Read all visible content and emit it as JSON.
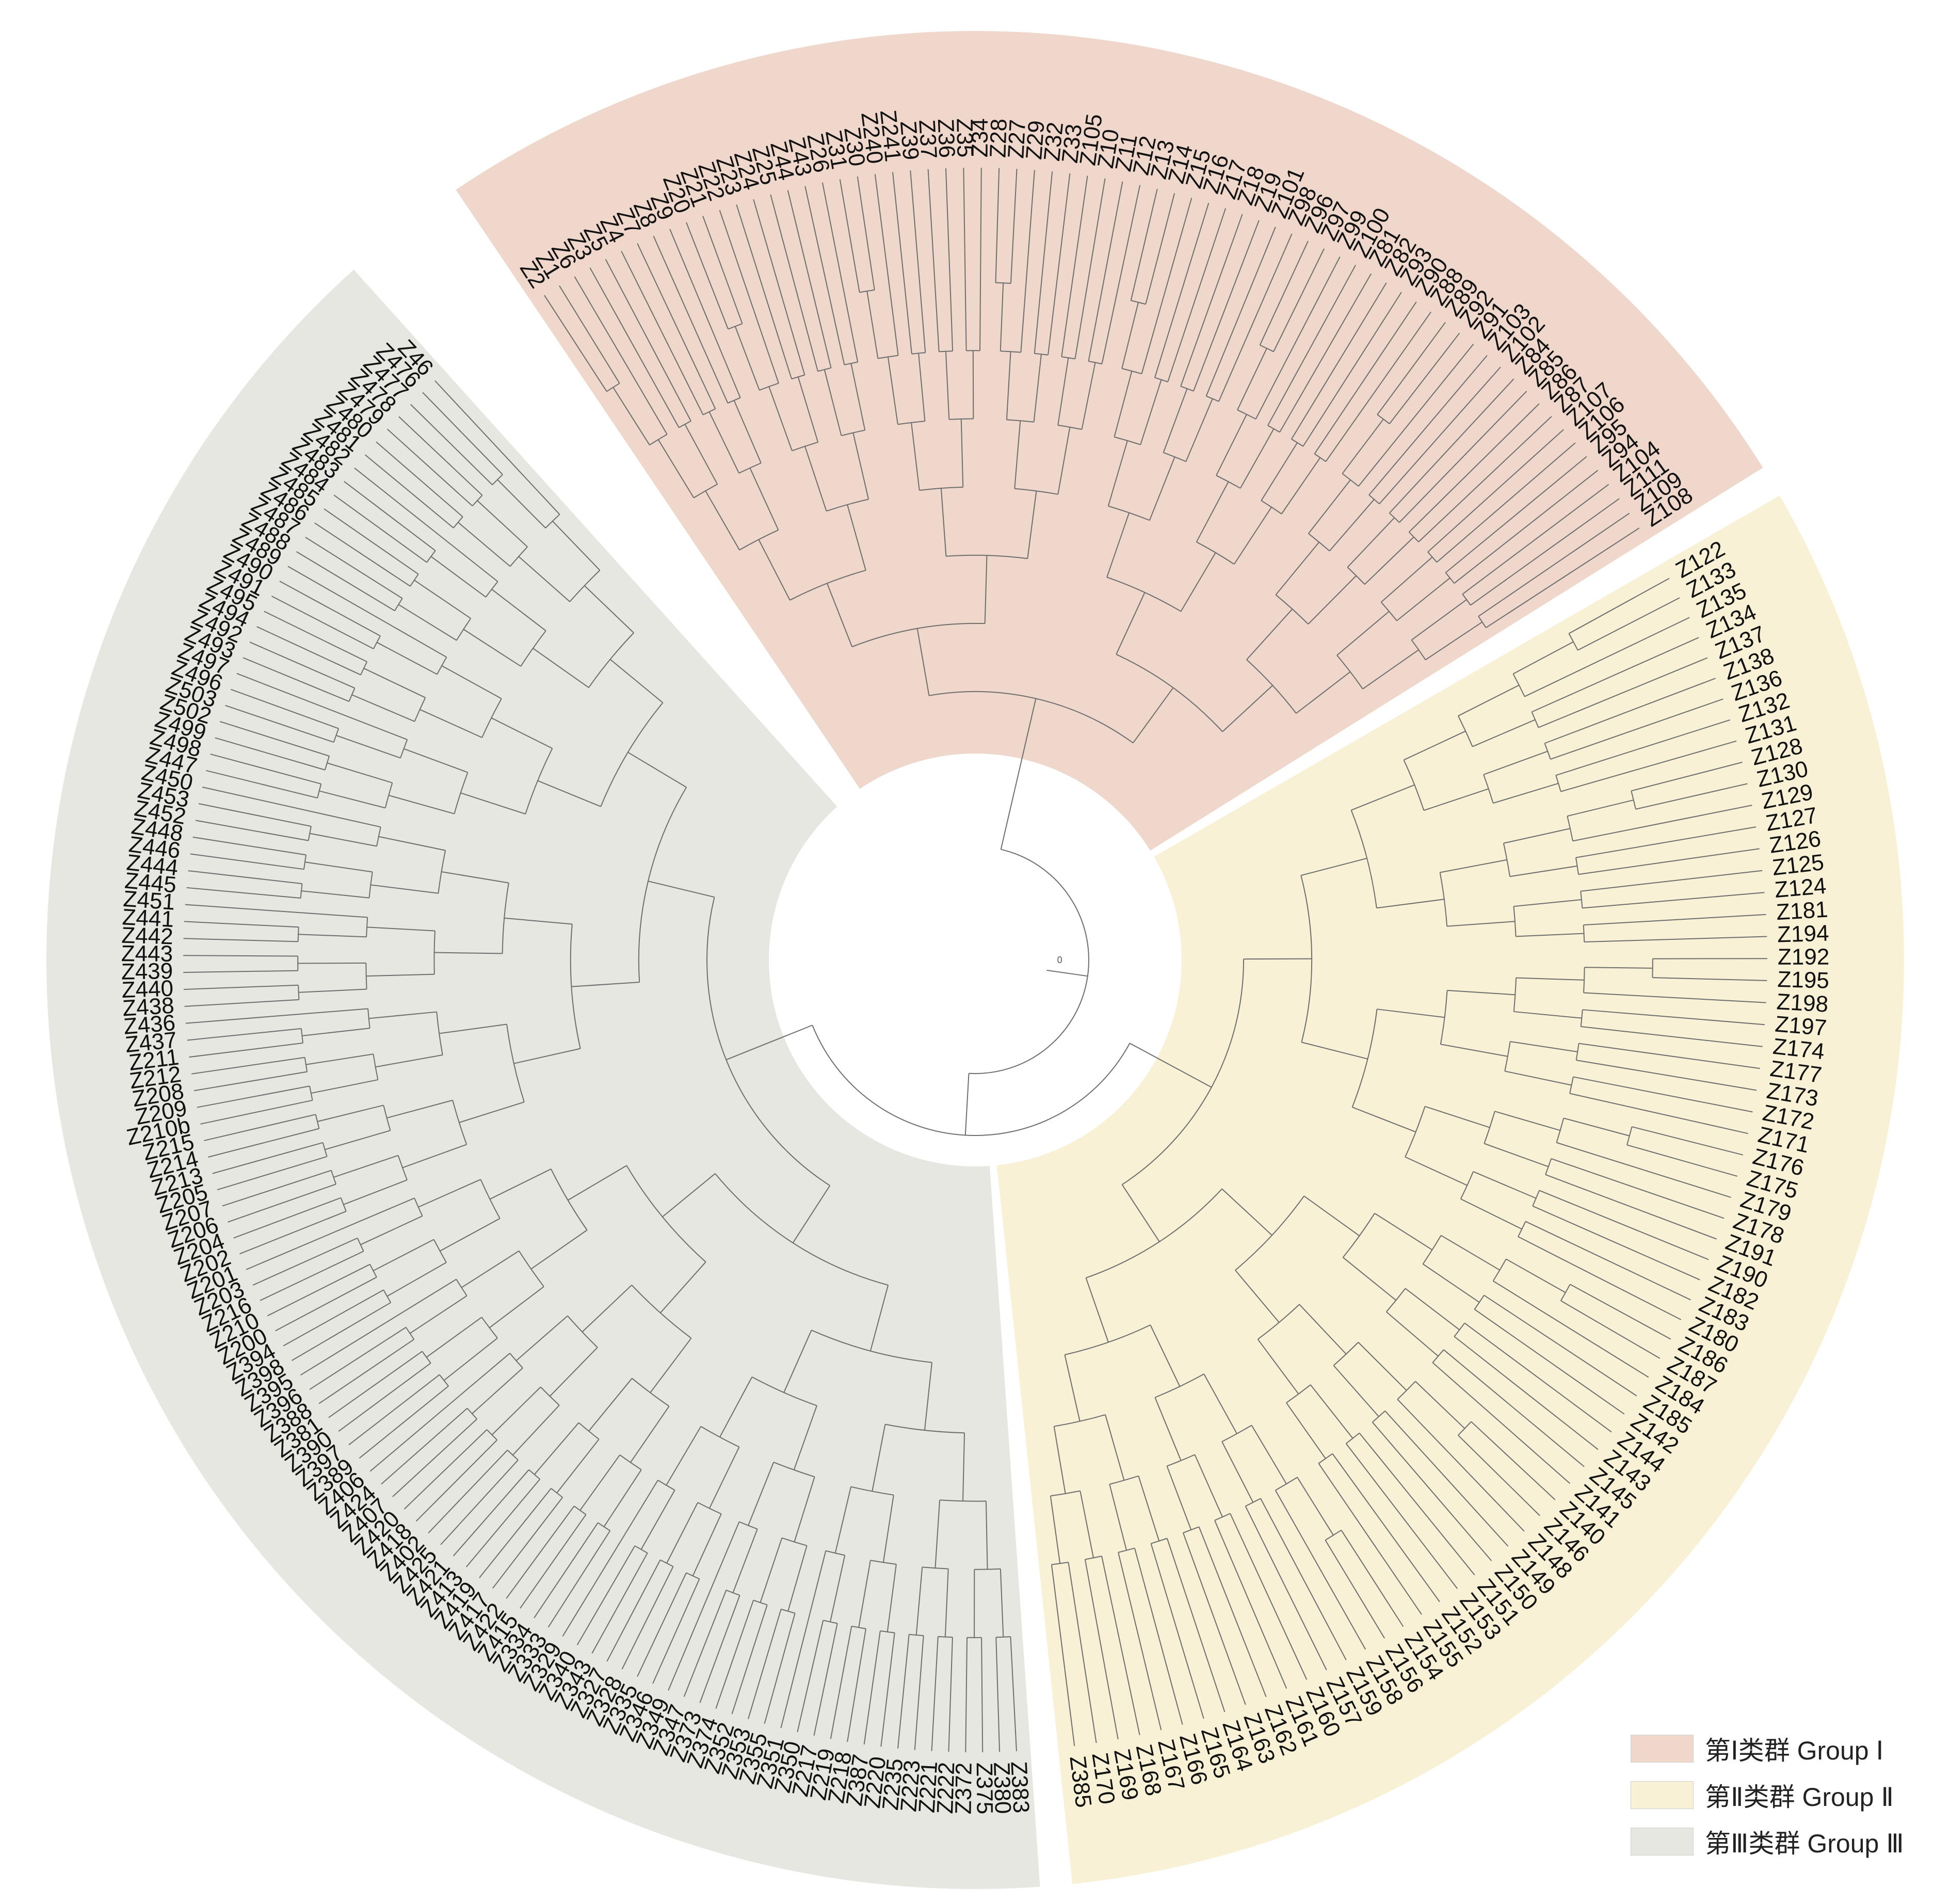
{
  "groups": [
    {
      "label": "第Ⅰ类群 Group Ⅰ",
      "color": "#efd7cb",
      "leaves": [
        "Z2",
        "Z1",
        "Z6",
        "Z3",
        "Z5",
        "Z4",
        "Z7",
        "Z8",
        "Z9",
        "Z20",
        "Z21",
        "Z22",
        "Z23",
        "Z24",
        "Z25",
        "Z44",
        "Z43",
        "Z26",
        "Z31",
        "Z30",
        "Z240",
        "Z241",
        "Z39",
        "Z37",
        "Z36",
        "Z35",
        "Z34",
        "Z28",
        "Z27",
        "Z29",
        "Z32",
        "Z33",
        "Z105",
        "Z10",
        "Z11",
        "Z12",
        "Z13",
        "Z14",
        "Z15",
        "Z16",
        "Z17",
        "Z18",
        "Z19",
        "Z101",
        "Z98",
        "Z96",
        "Z97",
        "Z99",
        "Z100",
        "Z81",
        "Z82",
        "Z93",
        "Z90",
        "Z88",
        "Z89",
        "Z92",
        "Z91",
        "Z103",
        "Z102",
        "Z84",
        "Z85",
        "Z86",
        "Z87",
        "Z107",
        "Z106",
        "Z95",
        "Z94",
        "Z104",
        "Z111",
        "Z109",
        "Z108"
      ]
    },
    {
      "label": "第Ⅱ类群 Group Ⅱ",
      "color": "#f8f1d6",
      "leaves": [
        "Z122",
        "Z133",
        "Z135",
        "Z134",
        "Z137",
        "Z138",
        "Z136",
        "Z132",
        "Z131",
        "Z128",
        "Z130",
        "Z129",
        "Z127",
        "Z126",
        "Z125",
        "Z124",
        "Z181",
        "Z194",
        "Z192",
        "Z195",
        "Z198",
        "Z197",
        "Z174",
        "Z177",
        "Z173",
        "Z172",
        "Z171",
        "Z176",
        "Z175",
        "Z179",
        "Z178",
        "Z191",
        "Z190",
        "Z182",
        "Z183",
        "Z180",
        "Z186",
        "Z187",
        "Z184",
        "Z185",
        "Z142",
        "Z144",
        "Z143",
        "Z145",
        "Z141",
        "Z140",
        "Z146",
        "Z148",
        "Z149",
        "Z150",
        "Z151",
        "Z153",
        "Z152",
        "Z155",
        "Z154",
        "Z156",
        "Z158",
        "Z159",
        "Z157",
        "Z160",
        "Z161",
        "Z162",
        "Z163",
        "Z164",
        "Z165",
        "Z166",
        "Z167",
        "Z168",
        "Z169",
        "Z170",
        "Z385"
      ]
    },
    {
      "label": "第Ⅲ类群 Group Ⅲ",
      "color": "#e6e7e1",
      "leaves": [
        "Z383",
        "Z380",
        "Z375",
        "Z372",
        "Z222",
        "Z221",
        "Z223",
        "Z235",
        "Z220",
        "Z387",
        "Z218",
        "Z219",
        "Z217",
        "Z350",
        "Z351",
        "Z355",
        "Z353",
        "Z352",
        "Z374",
        "Z373",
        "Z347",
        "Z349",
        "Z346",
        "Z335",
        "Z328",
        "Z327",
        "Z343",
        "Z340",
        "Z329",
        "Z333",
        "Z334",
        "Z415",
        "Z422",
        "Z417",
        "Z419",
        "Z413",
        "Z421",
        "Z425",
        "Z402",
        "Z418",
        "Z420",
        "Z407",
        "Z424",
        "Z406",
        "Z389",
        "Z397",
        "Z390",
        "Z381",
        "Z388",
        "Z396",
        "Z395",
        "Z398",
        "Z394",
        "Z200",
        "Z210",
        "Z216",
        "Z203",
        "Z201",
        "Z202",
        "Z204",
        "Z206",
        "Z207",
        "Z205",
        "Z213",
        "Z214",
        "Z215",
        "Z210b",
        "Z209",
        "Z208",
        "Z212",
        "Z211",
        "Z437",
        "Z436",
        "Z438",
        "Z440",
        "Z439",
        "Z443",
        "Z442",
        "Z441",
        "Z451",
        "Z445",
        "Z444",
        "Z446",
        "Z448",
        "Z452",
        "Z453",
        "Z450",
        "Z447",
        "Z498",
        "Z499",
        "Z502",
        "Z503",
        "Z496",
        "Z497",
        "Z493",
        "Z492",
        "Z494",
        "Z495",
        "Z491",
        "Z490",
        "Z489",
        "Z488",
        "Z487",
        "Z486",
        "Z485",
        "Z484",
        "Z483",
        "Z482",
        "Z481",
        "Z480",
        "Z479",
        "Z478",
        "Z477",
        "Z476",
        "Z46"
      ]
    }
  ],
  "branch_label": "0"
}
